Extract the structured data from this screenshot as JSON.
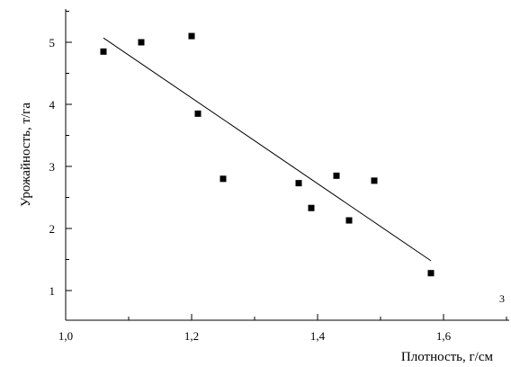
{
  "chart_data": {
    "type": "scatter",
    "title": "",
    "xlabel": "Плотность, г/см",
    "ylabel": "Урожайность, т/га",
    "xlim": [
      1.0,
      1.8
    ],
    "ylim": [
      0.5,
      5.5
    ],
    "x_ticks": [
      1.0,
      1.2,
      1.4,
      1.6
    ],
    "x_tick_labels": [
      "1,0",
      "1,2",
      "1,4",
      "1,6"
    ],
    "y_ticks": [
      1,
      2,
      3,
      4,
      5
    ],
    "y_tick_labels": [
      "1",
      "2",
      "3",
      "4",
      "5"
    ],
    "grid": false,
    "legend": "none",
    "annotation": "3",
    "series": [
      {
        "marker": "square",
        "points": [
          {
            "x": 1.06,
            "y": 4.85
          },
          {
            "x": 1.12,
            "y": 5.0
          },
          {
            "x": 1.2,
            "y": 5.1
          },
          {
            "x": 1.21,
            "y": 3.85
          },
          {
            "x": 1.25,
            "y": 2.8
          },
          {
            "x": 1.37,
            "y": 2.73
          },
          {
            "x": 1.39,
            "y": 2.33
          },
          {
            "x": 1.43,
            "y": 2.85
          },
          {
            "x": 1.45,
            "y": 2.13
          },
          {
            "x": 1.49,
            "y": 2.77
          },
          {
            "x": 1.58,
            "y": 1.28
          }
        ]
      }
    ],
    "trendline": {
      "x": [
        1.06,
        1.58
      ],
      "y": [
        5.07,
        1.48
      ]
    },
    "colors": {
      "marker": "#000000",
      "line": "#000000"
    }
  }
}
